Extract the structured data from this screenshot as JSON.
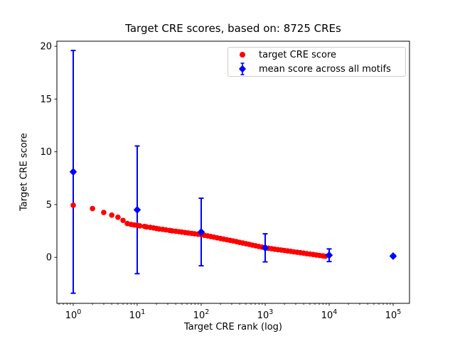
{
  "chart_data": {
    "type": "scatter",
    "title": "Target CRE scores, based on: 8725 CREs",
    "xlabel": "Target CRE rank (log)",
    "ylabel": "Target CRE score",
    "x_scale": "log",
    "xlim_log10": [
      -0.2556,
      5.2556
    ],
    "ylim": [
      -4.36,
      20.48
    ],
    "x_tick_exponents": [
      0,
      1,
      2,
      3,
      4,
      5
    ],
    "y_ticks": [
      0,
      5,
      10,
      15,
      20
    ],
    "grid": false,
    "background": "#ffffff",
    "frame_color": "#000000",
    "legend_position": "upper right",
    "series": [
      {
        "name": "target CRE score",
        "kind": "scatter",
        "marker": "circle",
        "color": "#ff0000",
        "n_points_total": 8725,
        "points": [
          [
            1,
            4.93
          ],
          [
            2,
            4.62
          ],
          [
            3,
            4.25
          ],
          [
            4,
            4.0
          ],
          [
            5,
            3.8
          ],
          [
            6,
            3.5
          ],
          [
            7,
            3.2
          ],
          [
            8,
            3.12
          ],
          [
            9,
            3.07
          ],
          [
            10,
            3.03
          ],
          [
            11,
            2.98
          ],
          [
            13,
            2.93
          ],
          [
            14,
            2.88
          ],
          [
            16,
            2.84
          ],
          [
            18,
            2.79
          ],
          [
            20,
            2.74
          ],
          [
            22,
            2.69
          ],
          [
            25,
            2.65
          ],
          [
            28,
            2.6
          ],
          [
            32,
            2.55
          ],
          [
            35,
            2.51
          ],
          [
            40,
            2.47
          ],
          [
            45,
            2.43
          ],
          [
            50,
            2.39
          ],
          [
            56,
            2.35
          ],
          [
            63,
            2.31
          ],
          [
            71,
            2.27
          ],
          [
            79,
            2.23
          ],
          [
            89,
            2.19
          ],
          [
            100,
            2.15
          ],
          [
            112,
            2.09
          ],
          [
            126,
            2.03
          ],
          [
            141,
            1.97
          ],
          [
            158,
            1.91
          ],
          [
            178,
            1.85
          ],
          [
            200,
            1.79
          ],
          [
            224,
            1.73
          ],
          [
            251,
            1.67
          ],
          [
            282,
            1.61
          ],
          [
            316,
            1.55
          ],
          [
            355,
            1.49
          ],
          [
            398,
            1.42
          ],
          [
            447,
            1.36
          ],
          [
            501,
            1.29
          ],
          [
            562,
            1.23
          ],
          [
            631,
            1.16
          ],
          [
            708,
            1.1
          ],
          [
            794,
            1.03
          ],
          [
            891,
            0.97
          ],
          [
            1000,
            0.9
          ],
          [
            1122,
            0.86
          ],
          [
            1259,
            0.82
          ],
          [
            1413,
            0.77
          ],
          [
            1585,
            0.73
          ],
          [
            1778,
            0.69
          ],
          [
            1995,
            0.65
          ],
          [
            2239,
            0.61
          ],
          [
            2512,
            0.57
          ],
          [
            2818,
            0.52
          ],
          [
            3162,
            0.48
          ],
          [
            3548,
            0.44
          ],
          [
            3981,
            0.4
          ],
          [
            4467,
            0.35
          ],
          [
            5012,
            0.31
          ],
          [
            5623,
            0.27
          ],
          [
            6310,
            0.22
          ],
          [
            7079,
            0.18
          ],
          [
            7943,
            0.14
          ],
          [
            8725,
            0.1
          ]
        ]
      },
      {
        "name": "mean score across all motifs",
        "kind": "errorbar",
        "marker": "diamond",
        "color": "#0000ff",
        "points": [
          {
            "x": 1,
            "y": 8.1,
            "yerr": 11.5
          },
          {
            "x": 10,
            "y": 4.5,
            "yerr": 6.05
          },
          {
            "x": 100,
            "y": 2.4,
            "yerr": 3.2
          },
          {
            "x": 1000,
            "y": 0.9,
            "yerr": 1.33
          },
          {
            "x": 10000,
            "y": 0.2,
            "yerr": 0.6
          },
          {
            "x": 100000,
            "y": 0.12,
            "yerr": 0.1
          }
        ]
      }
    ]
  }
}
